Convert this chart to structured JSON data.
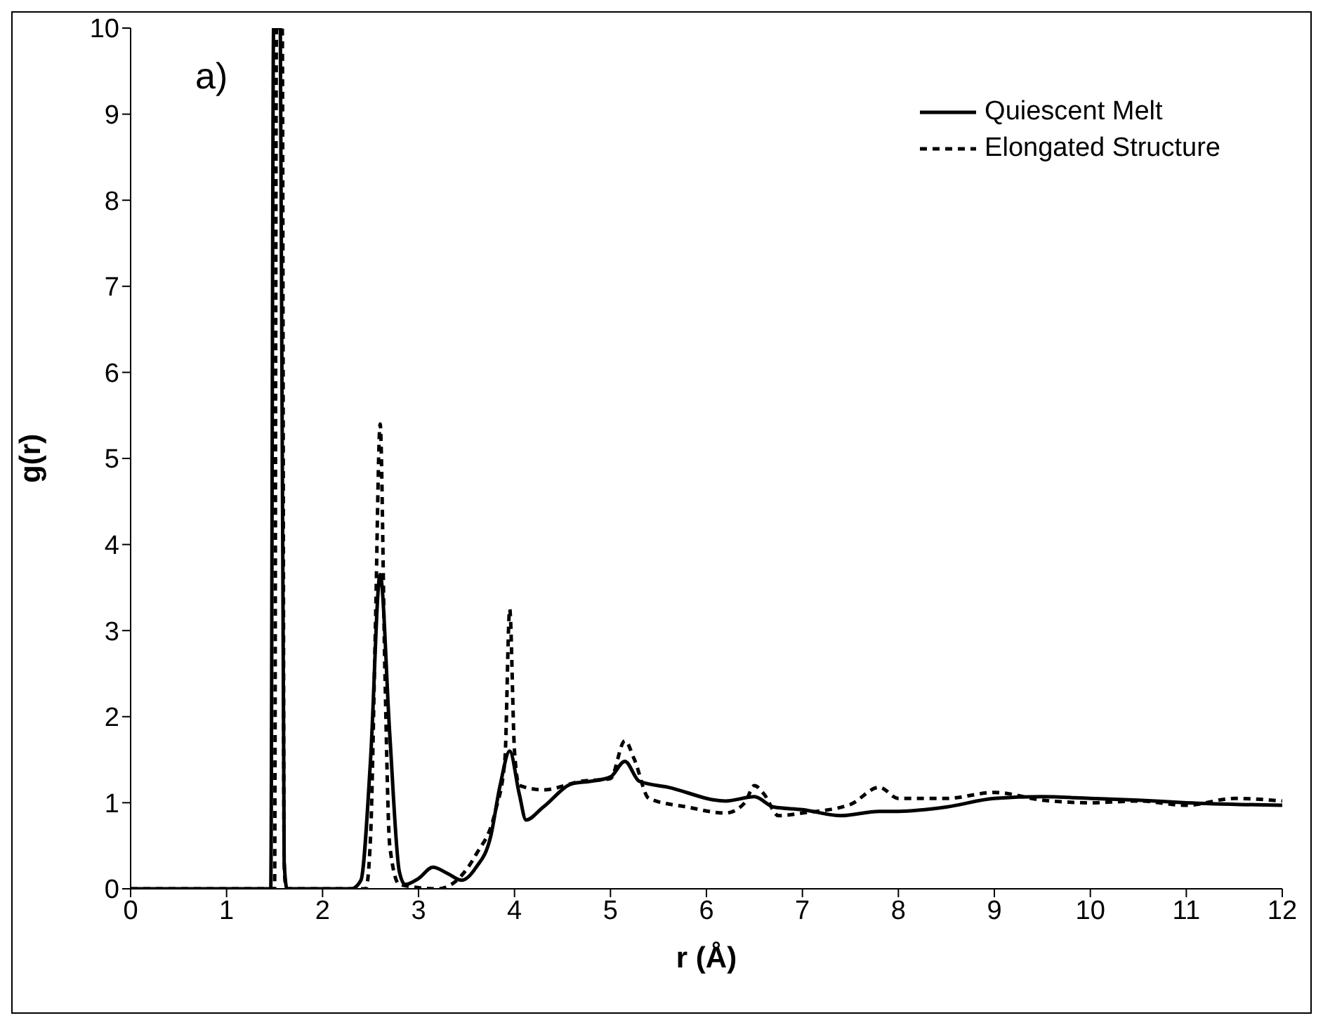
{
  "chart_data": {
    "type": "line",
    "xlabel": "r (Å)",
    "ylabel": "g(r)",
    "annotations": [
      "a)"
    ],
    "xlim": [
      0,
      12
    ],
    "xticks": [
      0,
      1,
      2,
      3,
      4,
      5,
      6,
      7,
      8,
      9,
      10,
      11,
      12
    ],
    "ylim": [
      0,
      10
    ],
    "yticks": [
      0,
      1,
      2,
      3,
      4,
      5,
      6,
      7,
      8,
      9,
      10
    ],
    "grid": false,
    "legend": "top right",
    "marker": "none",
    "series": [
      {
        "name": "Quiescent Melt",
        "color": "#000000",
        "line_style": "solid",
        "x": [
          0,
          1.42,
          1.46,
          1.49,
          1.56,
          1.6,
          1.63,
          2.3,
          2.4,
          2.5,
          2.6,
          2.7,
          2.8,
          2.86,
          3.0,
          3.15,
          3.3,
          3.45,
          3.6,
          3.75,
          3.85,
          3.95,
          4.05,
          4.12,
          4.3,
          4.6,
          4.8,
          5.0,
          5.15,
          5.3,
          5.6,
          6.2,
          6.5,
          6.7,
          7.0,
          7.4,
          7.8,
          8.0,
          8.5,
          9.0,
          9.5,
          10.0,
          10.5,
          11.0,
          12.0
        ],
        "values": [
          0,
          0,
          0,
          10,
          10,
          0.3,
          0,
          0,
          0.1,
          1.5,
          3.65,
          1.8,
          0.2,
          0.05,
          0.12,
          0.25,
          0.18,
          0.1,
          0.25,
          0.6,
          1.2,
          1.6,
          1.1,
          0.8,
          0.95,
          1.22,
          1.25,
          1.3,
          1.48,
          1.25,
          1.18,
          1.02,
          1.07,
          0.95,
          0.92,
          0.85,
          0.9,
          0.9,
          0.95,
          1.05,
          1.07,
          1.05,
          1.03,
          1.0,
          0.97
        ]
      },
      {
        "name": "Elongated Structure",
        "color": "#000000",
        "line_style": "dashed",
        "x": [
          0,
          1.47,
          1.5,
          1.52,
          1.58,
          1.6,
          1.62,
          2.45,
          2.5,
          2.55,
          2.6,
          2.65,
          2.7,
          2.8,
          3.2,
          3.4,
          3.6,
          3.8,
          3.9,
          3.95,
          4.0,
          4.05,
          4.3,
          4.7,
          5.0,
          5.15,
          5.25,
          5.4,
          5.8,
          6.2,
          6.4,
          6.5,
          6.6,
          6.75,
          7.0,
          7.5,
          7.8,
          8.0,
          8.5,
          9.0,
          9.5,
          10.0,
          10.5,
          11.0,
          11.5,
          12.0
        ],
        "values": [
          0,
          0,
          0,
          10,
          10,
          0.3,
          0,
          0,
          0.6,
          3.0,
          5.4,
          2.5,
          0.5,
          0.05,
          0,
          0.1,
          0.4,
          0.9,
          1.5,
          3.25,
          1.6,
          1.2,
          1.15,
          1.25,
          1.28,
          1.72,
          1.5,
          1.05,
          0.95,
          0.88,
          1.0,
          1.2,
          1.1,
          0.85,
          0.88,
          0.98,
          1.18,
          1.05,
          1.05,
          1.12,
          1.03,
          1.0,
          1.02,
          0.97,
          1.05,
          1.02
        ]
      }
    ]
  }
}
